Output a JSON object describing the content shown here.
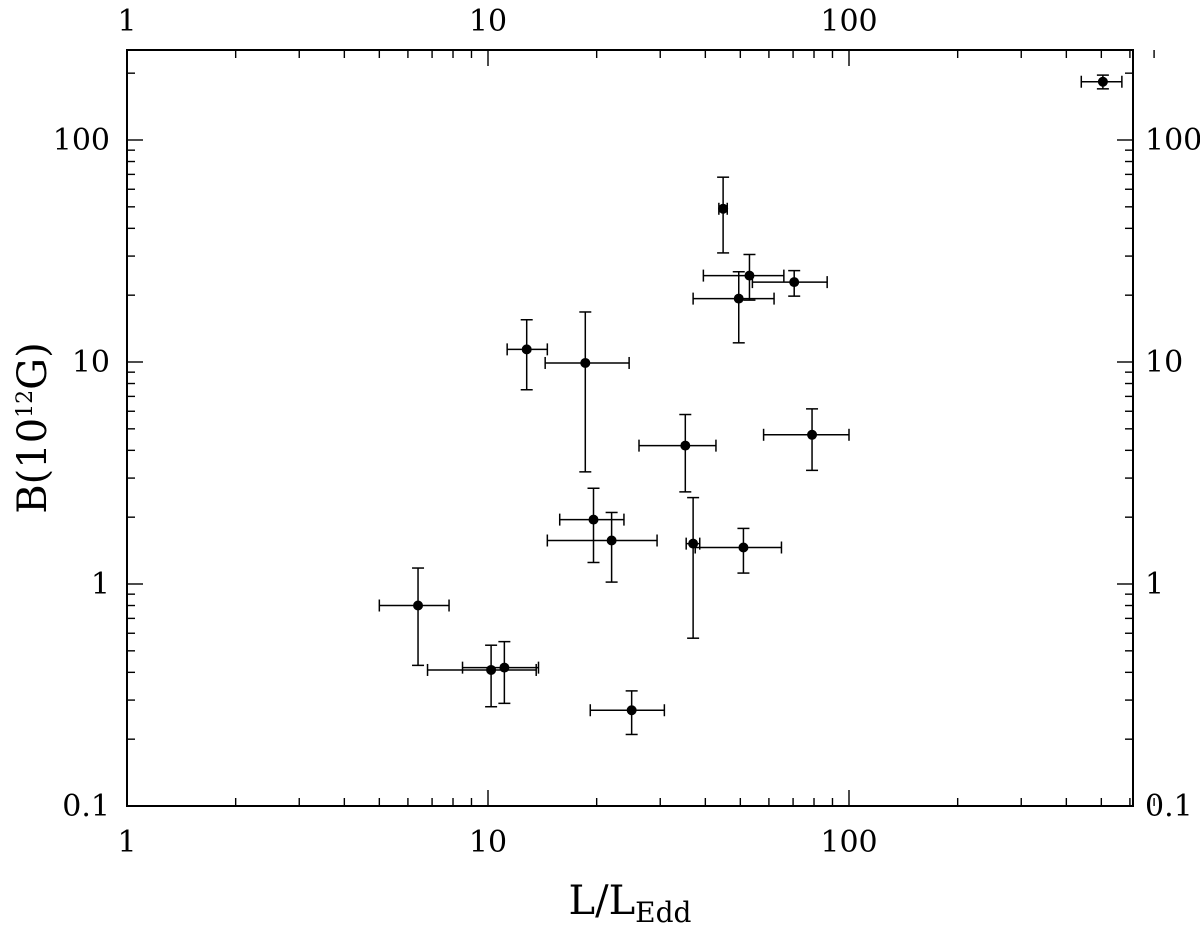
{
  "chart_data": {
    "type": "scatter",
    "xscale": "log",
    "yscale": "log",
    "xlim": [
      1,
      700
    ],
    "ylim": [
      0.1,
      250
    ],
    "grid": false,
    "x_ticks": [
      {
        "value": 1,
        "label": "1"
      },
      {
        "value": 10,
        "label": "10"
      },
      {
        "value": 100,
        "label": "100"
      }
    ],
    "y_ticks": [
      {
        "value": 0.1,
        "label": "0.1"
      },
      {
        "value": 1,
        "label": "1"
      },
      {
        "value": 10,
        "label": "10"
      },
      {
        "value": 100,
        "label": "100"
      }
    ],
    "xlabel": {
      "main": "L/L",
      "sub": "Edd"
    },
    "ylabel": {
      "main": "B(10",
      "sup": "12",
      "tail": "G)"
    },
    "points": [
      {
        "x": 6.4,
        "xerr": [
          5.0,
          7.8
        ],
        "y": 0.8,
        "yerr": [
          0.43,
          1.18
        ]
      },
      {
        "x": 10.2,
        "xerr": [
          6.8,
          13.6
        ],
        "y": 0.41,
        "yerr": [
          0.28,
          0.53
        ]
      },
      {
        "x": 11.1,
        "xerr": [
          8.5,
          13.8
        ],
        "y": 0.42,
        "yerr": [
          0.29,
          0.55
        ]
      },
      {
        "x": 12.8,
        "xerr": [
          11.3,
          14.6
        ],
        "y": 11.4,
        "yerr": [
          7.5,
          15.5
        ]
      },
      {
        "x": 18.6,
        "xerr": [
          14.4,
          24.6
        ],
        "y": 9.9,
        "yerr": [
          3.2,
          16.8
        ]
      },
      {
        "x": 19.6,
        "xerr": [
          15.8,
          23.8
        ],
        "y": 1.95,
        "yerr": [
          1.25,
          2.7
        ]
      },
      {
        "x": 22.0,
        "xerr": [
          14.6,
          29.4
        ],
        "y": 1.57,
        "yerr": [
          1.02,
          2.1
        ]
      },
      {
        "x": 25.0,
        "xerr": [
          19.2,
          30.8
        ],
        "y": 0.27,
        "yerr": [
          0.21,
          0.33
        ]
      },
      {
        "x": 35.2,
        "xerr": [
          26.2,
          42.8
        ],
        "y": 4.2,
        "yerr": [
          2.6,
          5.8
        ]
      },
      {
        "x": 37.0,
        "xerr": [
          35.4,
          38.6
        ],
        "y": 1.52,
        "yerr": [
          0.57,
          2.45
        ]
      },
      {
        "x": 44.8,
        "xerr": [
          43.6,
          46.0
        ],
        "y": 49,
        "yerr": [
          31,
          68
        ]
      },
      {
        "x": 49.5,
        "xerr": [
          37.0,
          62.0
        ],
        "y": 19.3,
        "yerr": [
          12.2,
          25.5
        ]
      },
      {
        "x": 51.0,
        "xerr": [
          37.5,
          65.0
        ],
        "y": 1.46,
        "yerr": [
          1.12,
          1.78
        ]
      },
      {
        "x": 53.0,
        "xerr": [
          39.5,
          66.0
        ],
        "y": 24.5,
        "yerr": [
          19.0,
          30.5
        ]
      },
      {
        "x": 70.5,
        "xerr": [
          54.0,
          87.0
        ],
        "y": 22.9,
        "yerr": [
          19.8,
          25.8
        ]
      },
      {
        "x": 79.0,
        "xerr": [
          58.0,
          100.0
        ],
        "y": 4.7,
        "yerr": [
          3.25,
          6.15
        ]
      },
      {
        "x": 505,
        "xerr": [
          440,
          570
        ],
        "y": 183,
        "yerr": [
          170,
          196
        ]
      }
    ]
  }
}
